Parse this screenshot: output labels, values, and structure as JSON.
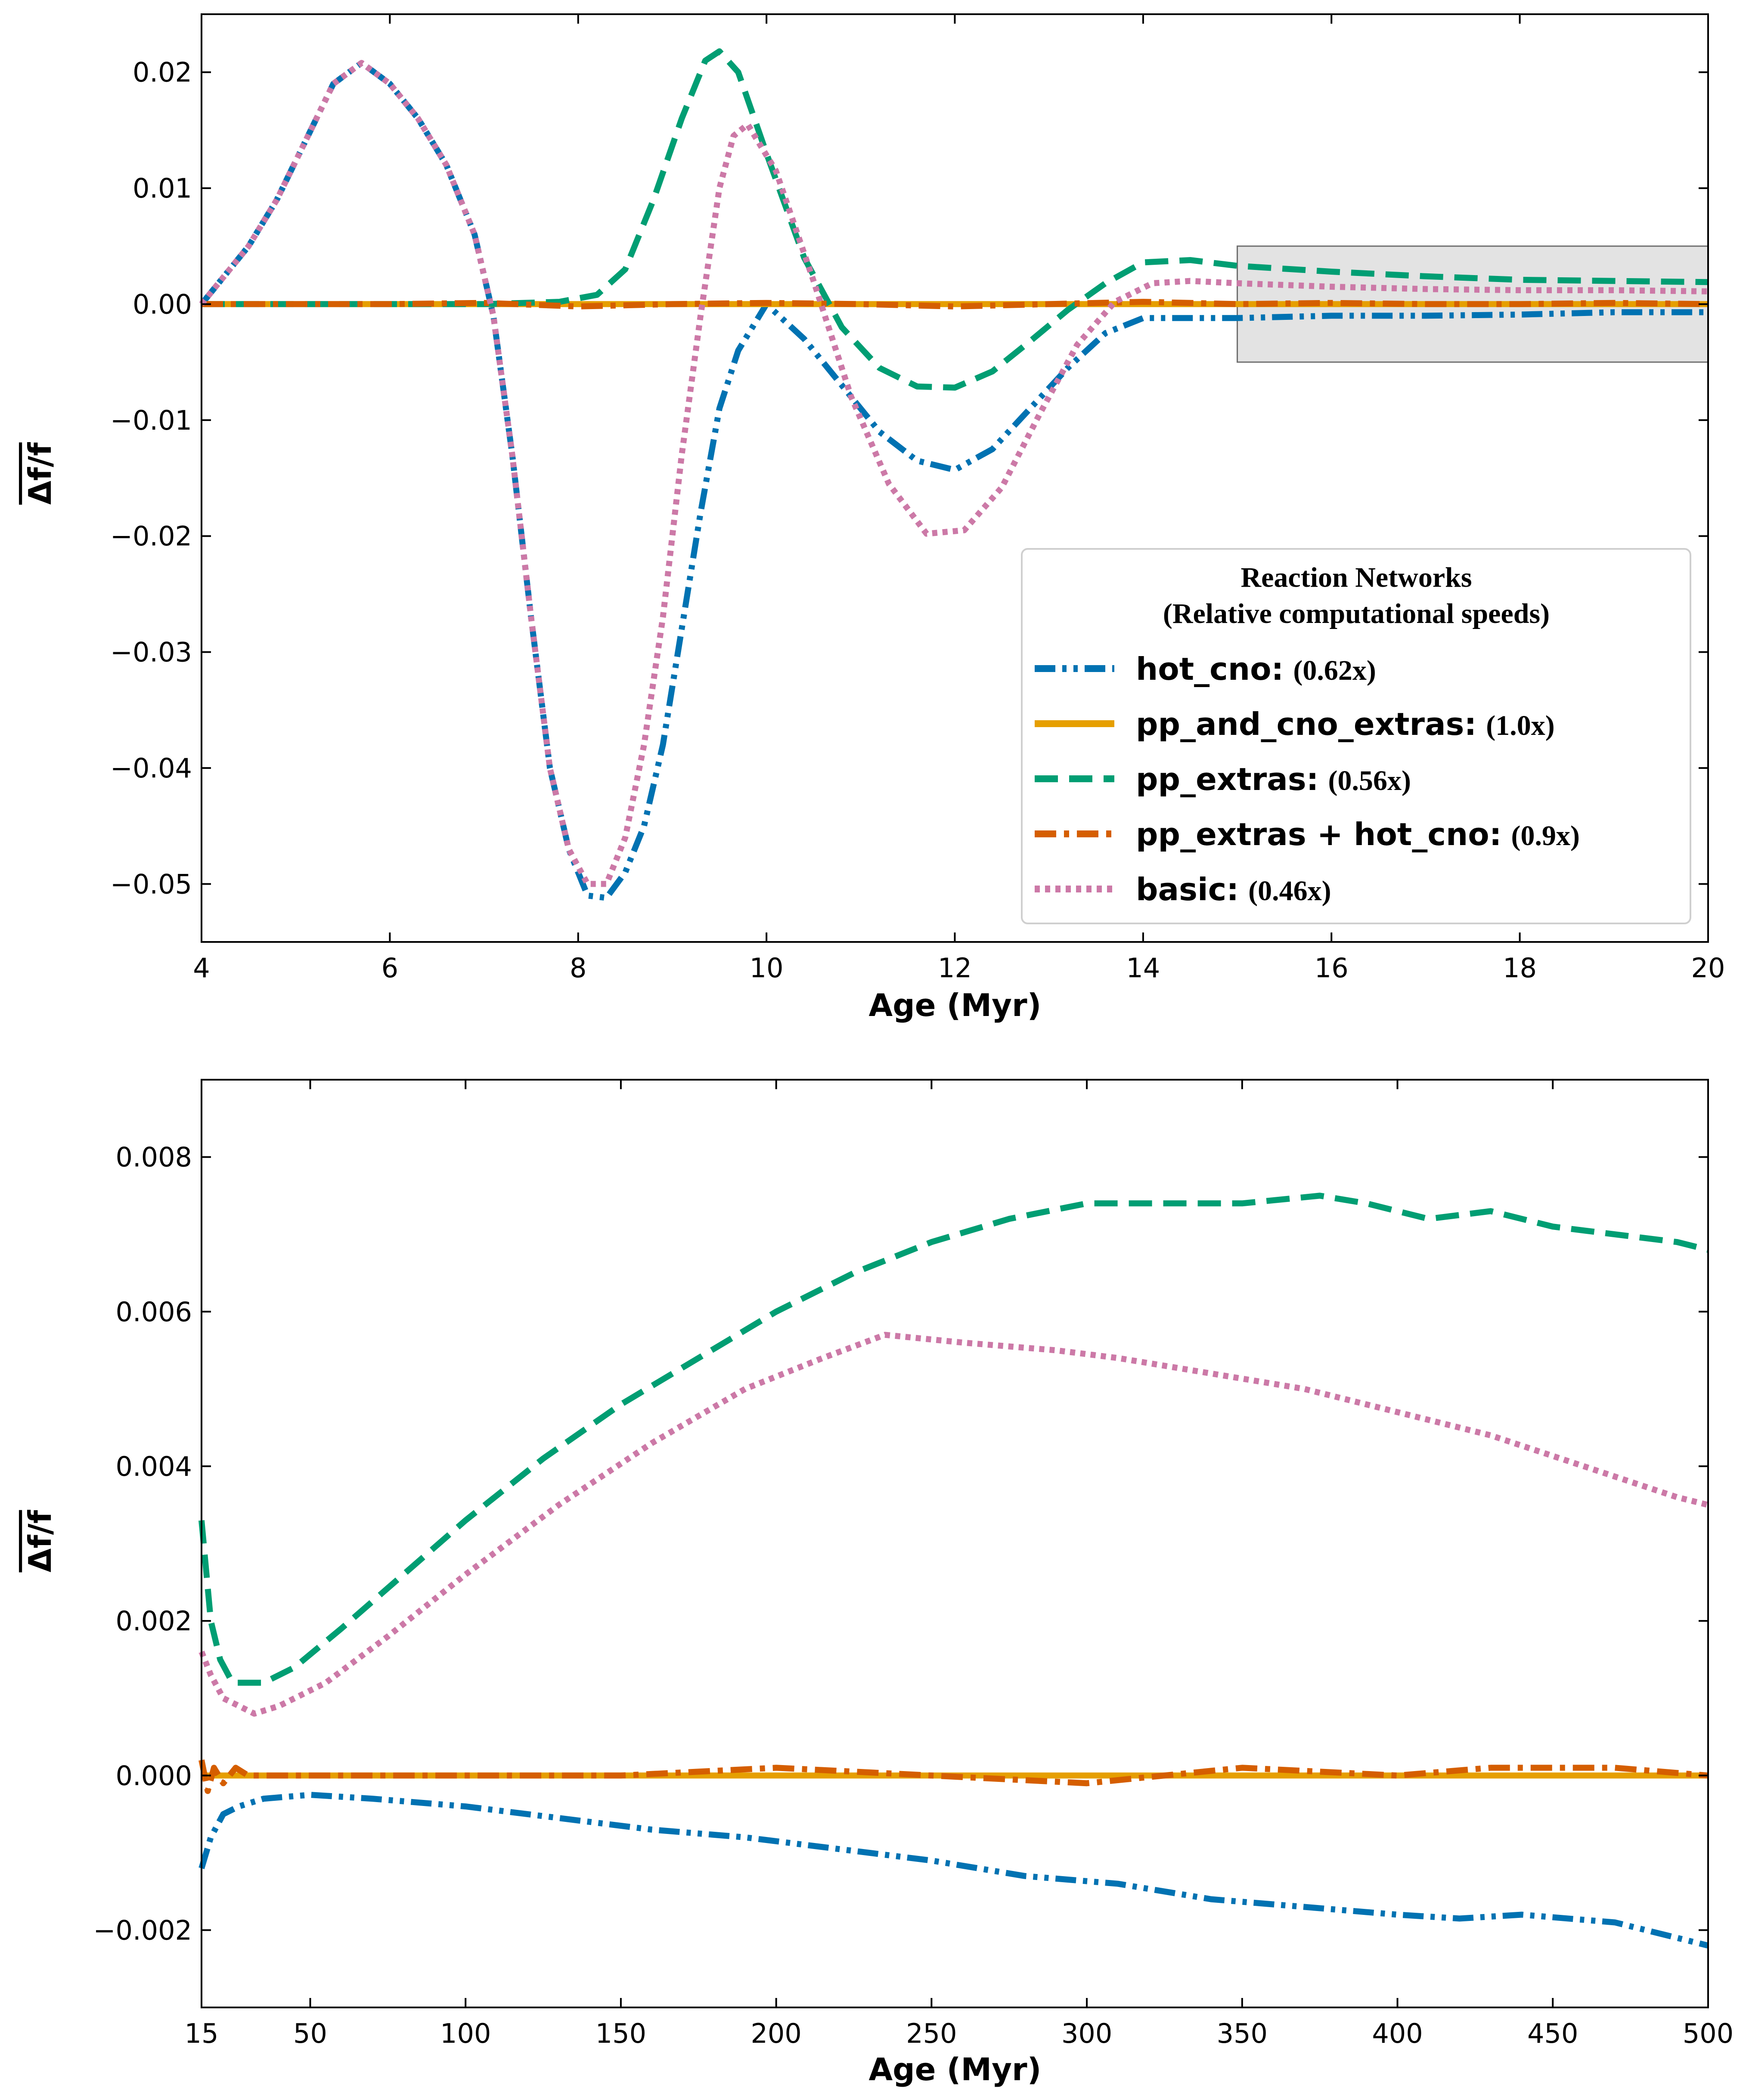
{
  "colors": {
    "hot_cno": "#0072b2",
    "pp_and_cno_extras": "#e69f00",
    "pp_extras": "#009e73",
    "pp_extras_hot_cno": "#d55e00",
    "basic": "#cc79a7",
    "highlight_box": "#e3e3e3"
  },
  "chart_data": [
    {
      "type": "line",
      "xlabel": "Age (Myr)",
      "ylabel": "Δf/f",
      "xlim": [
        4,
        20
      ],
      "ylim": [
        -0.055,
        0.025
      ],
      "x_ticks": [
        4,
        6,
        8,
        10,
        12,
        14,
        16,
        18,
        20
      ],
      "y_ticks": [
        0.02,
        0.01,
        0.0,
        -0.01,
        -0.02,
        -0.03,
        -0.04,
        -0.05
      ],
      "x_tick_labels": [
        "4",
        "6",
        "8",
        "10",
        "12",
        "14",
        "16",
        "18",
        "20"
      ],
      "y_tick_labels": [
        "0.02",
        "0.01",
        "0.00",
        "−0.01",
        "−0.02",
        "−0.03",
        "−0.04",
        "−0.05"
      ],
      "grid": false,
      "legend": {
        "placement": "lower-right",
        "title_line1": "Reaction Networks",
        "title_line2": "(Relative computational speeds)",
        "entries": [
          {
            "name": "hot_cno",
            "speed": "(0.62x)"
          },
          {
            "name": "pp_and_cno_extras",
            "speed": "(1.0x)"
          },
          {
            "name": "pp_extras",
            "speed": "(0.56x)"
          },
          {
            "name": "pp_extras + hot_cno",
            "speed": "(0.9x)"
          },
          {
            "name": "basic",
            "speed": "(0.46x)"
          }
        ]
      },
      "shaded_region": {
        "x": [
          15,
          20
        ],
        "y": [
          -0.005,
          0.005
        ]
      },
      "series": [
        {
          "name": "hot_cno",
          "style": "dashdotdot",
          "x": [
            4,
            4.2,
            4.5,
            4.8,
            5.1,
            5.4,
            5.7,
            6.0,
            6.3,
            6.6,
            6.9,
            7.1,
            7.3,
            7.5,
            7.7,
            7.9,
            8.1,
            8.3,
            8.5,
            8.7,
            8.9,
            9.1,
            9.3,
            9.5,
            9.7,
            10.0,
            10.4,
            10.8,
            11.2,
            11.6,
            12.0,
            12.4,
            12.8,
            13.2,
            13.6,
            14.0,
            15.0,
            16.0,
            17.0,
            18.0,
            19.0,
            20.0
          ],
          "y": [
            0.0,
            0.002,
            0.005,
            0.009,
            0.014,
            0.019,
            0.0208,
            0.019,
            0.016,
            0.012,
            0.006,
            -0.001,
            -0.013,
            -0.027,
            -0.04,
            -0.047,
            -0.051,
            -0.0512,
            -0.049,
            -0.045,
            -0.038,
            -0.028,
            -0.018,
            -0.009,
            -0.004,
            0.0,
            -0.003,
            -0.007,
            -0.011,
            -0.0135,
            -0.0143,
            -0.0125,
            -0.009,
            -0.0055,
            -0.0025,
            -0.0012,
            -0.0012,
            -0.001,
            -0.001,
            -0.0009,
            -0.0007,
            -0.0007
          ]
        },
        {
          "name": "pp_and_cno_extras",
          "style": "solid",
          "x": [
            4,
            6,
            8,
            10,
            12,
            14,
            16,
            18,
            20
          ],
          "y": [
            0.0,
            0.0,
            0.0,
            0.0,
            0.0,
            0.0,
            0.0,
            0.0,
            0.0
          ]
        },
        {
          "name": "pp_extras",
          "style": "dashed",
          "x": [
            4,
            7.0,
            7.8,
            8.2,
            8.5,
            8.8,
            9.1,
            9.35,
            9.5,
            9.7,
            10.0,
            10.4,
            10.8,
            11.2,
            11.6,
            12.0,
            12.4,
            12.8,
            13.2,
            13.6,
            14.0,
            14.5,
            15.0,
            16.0,
            17.0,
            18.0,
            19.0,
            20.0
          ],
          "y": [
            0.0,
            0.0,
            0.0002,
            0.0008,
            0.003,
            0.009,
            0.016,
            0.021,
            0.0218,
            0.02,
            0.013,
            0.004,
            -0.002,
            -0.0055,
            -0.0071,
            -0.0072,
            -0.0058,
            -0.0032,
            -0.0005,
            0.0018,
            0.0036,
            0.0038,
            0.0033,
            0.0028,
            0.0024,
            0.0021,
            0.002,
            0.0019
          ]
        },
        {
          "name": "pp_extras + hot_cno",
          "style": "dashdot",
          "x": [
            4,
            5,
            6,
            7,
            8,
            9,
            10,
            11,
            12,
            13,
            14,
            15,
            16,
            17,
            18,
            19,
            20
          ],
          "y": [
            0.0,
            0.0,
            0.0,
            0.0001,
            -0.0002,
            0.0,
            0.0001,
            0.0,
            -0.0002,
            0.0,
            0.0002,
            0.0,
            0.0001,
            0.0,
            0.0,
            0.0001,
            0.0
          ]
        },
        {
          "name": "basic",
          "style": "dotted",
          "x": [
            4,
            4.2,
            4.5,
            4.8,
            5.1,
            5.4,
            5.7,
            6.0,
            6.3,
            6.6,
            6.9,
            7.1,
            7.3,
            7.5,
            7.7,
            7.9,
            8.1,
            8.3,
            8.5,
            8.7,
            8.9,
            9.1,
            9.3,
            9.5,
            9.65,
            9.8,
            10.1,
            10.5,
            10.9,
            11.3,
            11.7,
            12.1,
            12.5,
            12.9,
            13.3,
            13.7,
            14.1,
            14.5,
            15.0,
            16.0,
            17.0,
            18.0,
            19.0,
            20.0
          ],
          "y": [
            0.0,
            0.002,
            0.005,
            0.009,
            0.014,
            0.019,
            0.0208,
            0.019,
            0.016,
            0.012,
            0.006,
            -0.001,
            -0.013,
            -0.027,
            -0.04,
            -0.047,
            -0.05,
            -0.05,
            -0.046,
            -0.038,
            -0.027,
            -0.013,
            -0.001,
            0.01,
            0.0145,
            0.0155,
            0.0115,
            0.002,
            -0.008,
            -0.0155,
            -0.0198,
            -0.0195,
            -0.0158,
            -0.0095,
            -0.0035,
            0.0002,
            0.0018,
            0.002,
            0.0018,
            0.0015,
            0.0013,
            0.0012,
            0.0012,
            0.0011
          ]
        }
      ]
    },
    {
      "type": "line",
      "xlabel": "Age (Myr)",
      "ylabel": "Δf/f",
      "xlim": [
        15,
        500
      ],
      "ylim": [
        -0.003,
        0.009
      ],
      "x_ticks": [
        15,
        50,
        100,
        150,
        200,
        250,
        300,
        350,
        400,
        450,
        500
      ],
      "y_ticks": [
        0.008,
        0.006,
        0.004,
        0.002,
        0.0,
        -0.002
      ],
      "x_tick_labels": [
        "15",
        "50",
        "100",
        "150",
        "200",
        "250",
        "300",
        "350",
        "400",
        "450",
        "500"
      ],
      "y_tick_labels": [
        "0.008",
        "0.006",
        "0.004",
        "0.002",
        "0.000",
        "−0.002"
      ],
      "grid": false,
      "series": [
        {
          "name": "hot_cno",
          "style": "dashdotdot",
          "x": [
            15,
            18,
            22,
            27,
            35,
            50,
            70,
            100,
            130,
            160,
            190,
            220,
            250,
            280,
            310,
            340,
            370,
            400,
            420,
            440,
            470,
            490,
            500
          ],
          "y": [
            -0.0012,
            -0.0008,
            -0.0005,
            -0.0004,
            -0.0003,
            -0.00025,
            -0.0003,
            -0.0004,
            -0.00055,
            -0.0007,
            -0.0008,
            -0.00095,
            -0.0011,
            -0.0013,
            -0.0014,
            -0.0016,
            -0.0017,
            -0.0018,
            -0.00185,
            -0.0018,
            -0.0019,
            -0.0021,
            -0.0022
          ]
        },
        {
          "name": "pp_and_cno_extras",
          "style": "solid",
          "x": [
            15,
            100,
            200,
            300,
            400,
            500
          ],
          "y": [
            0.0,
            0.0,
            0.0,
            0.0,
            0.0,
            0.0
          ]
        },
        {
          "name": "pp_extras",
          "style": "dashed",
          "x": [
            15,
            18,
            21,
            25,
            30,
            35,
            45,
            60,
            80,
            100,
            125,
            150,
            175,
            200,
            225,
            250,
            275,
            300,
            325,
            350,
            375,
            390,
            410,
            430,
            450,
            470,
            490,
            500
          ],
          "y": [
            0.0033,
            0.002,
            0.0015,
            0.0012,
            0.0012,
            0.0012,
            0.0014,
            0.0019,
            0.0026,
            0.0033,
            0.0041,
            0.0048,
            0.0054,
            0.006,
            0.0065,
            0.0069,
            0.0072,
            0.0074,
            0.0074,
            0.0074,
            0.0075,
            0.0074,
            0.0072,
            0.0073,
            0.0071,
            0.007,
            0.0069,
            0.0068
          ]
        },
        {
          "name": "pp_extras + hot_cno",
          "style": "dashdot",
          "x": [
            15,
            17,
            19,
            22,
            26,
            30,
            50,
            100,
            150,
            200,
            250,
            300,
            350,
            400,
            430,
            470,
            500
          ],
          "y": [
            0.0002,
            -0.0002,
            0.0001,
            -0.0001,
            0.0001,
            0.0,
            0.0,
            0.0,
            0.0,
            0.0001,
            0.0,
            -0.0001,
            0.0001,
            0.0,
            0.0001,
            0.0001,
            0.0
          ]
        },
        {
          "name": "basic",
          "style": "dotted",
          "x": [
            15,
            18,
            22,
            27,
            32,
            40,
            55,
            75,
            100,
            130,
            160,
            190,
            215,
            235,
            260,
            290,
            310,
            340,
            370,
            400,
            430,
            460,
            490,
            500
          ],
          "y": [
            0.0016,
            0.0013,
            0.001,
            0.0009,
            0.0008,
            0.0009,
            0.0012,
            0.0018,
            0.0026,
            0.0035,
            0.0043,
            0.005,
            0.0054,
            0.0057,
            0.0056,
            0.0055,
            0.0054,
            0.0052,
            0.005,
            0.0047,
            0.0044,
            0.004,
            0.0036,
            0.0035
          ]
        }
      ]
    }
  ]
}
